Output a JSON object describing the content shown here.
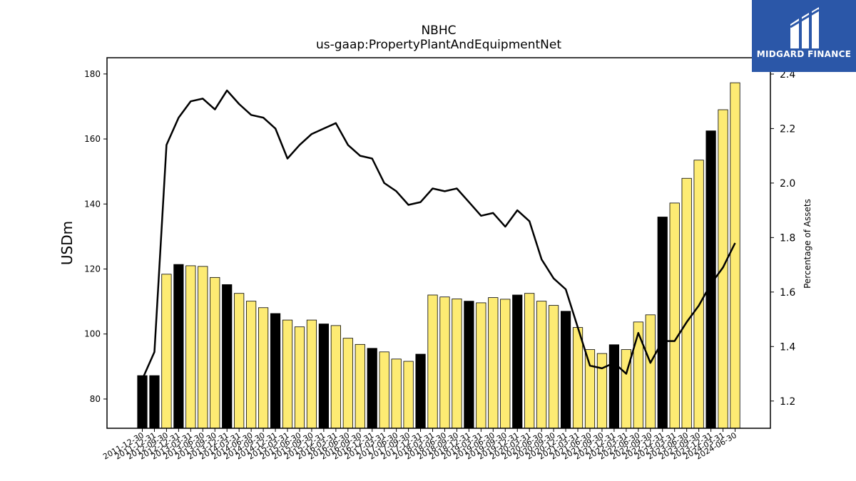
{
  "header": {
    "title": "NBHC",
    "subtitle": "us-gaap:PropertyPlantAndEquipmentNet"
  },
  "logo": {
    "text": "MIDGARD FINANCE",
    "bg_color": "#2b57a8"
  },
  "colors": {
    "bar_q4": "#000000",
    "bar_other": "#fdeb73",
    "line": "#000000"
  },
  "chart_data": {
    "type": "bar+line",
    "ylabel_left": "USDm",
    "ylabel_right": "Percentage of Assets",
    "ylim_left": [
      71,
      185
    ],
    "ylim_right": [
      1.1,
      2.46
    ],
    "yticks_left": [
      80,
      100,
      120,
      140,
      160,
      180
    ],
    "yticks_right": [
      1.2,
      1.4,
      1.6,
      1.8,
      2.0,
      2.2,
      2.4
    ],
    "grid": false,
    "categories": [
      "2011-12-30",
      "2011-12-31",
      "2012-09-30",
      "2012-12-31",
      "2013-03-31",
      "2013-06-30",
      "2013-09-30",
      "2013-12-31",
      "2014-03-31",
      "2014-06-30",
      "2014-09-30",
      "2014-12-31",
      "2015-03-31",
      "2015-06-30",
      "2015-09-30",
      "2015-12-31",
      "2016-03-31",
      "2016-06-30",
      "2016-09-30",
      "2016-12-31",
      "2017-03-31",
      "2017-06-30",
      "2017-09-30",
      "2017-12-31",
      "2018-03-31",
      "2018-06-30",
      "2018-09-30",
      "2018-12-31",
      "2019-03-31",
      "2019-06-30",
      "2019-09-30",
      "2019-12-31",
      "2020-03-31",
      "2020-06-30",
      "2020-09-30",
      "2020-12-31",
      "2021-03-31",
      "2021-06-30",
      "2021-09-30",
      "2021-12-31",
      "2022-03-31",
      "2022-06-30",
      "2022-09-30",
      "2022-12-31",
      "2023-03-31",
      "2023-06-30",
      "2023-09-30",
      "2023-12-31",
      "2024-03-31",
      "2024-06-30"
    ],
    "bar_values": [
      87.2,
      87.2,
      118.4,
      121.4,
      121.0,
      120.8,
      117.4,
      115.2,
      112.5,
      110.1,
      108.1,
      106.3,
      104.3,
      102.2,
      104.3,
      103.1,
      102.6,
      98.7,
      96.8,
      95.6,
      94.5,
      92.3,
      91.6,
      93.8,
      112.0,
      111.4,
      110.8,
      110.1,
      109.6,
      111.2,
      110.7,
      112.0,
      112.5,
      110.1,
      108.8,
      107.0,
      102.0,
      95.2,
      94.0,
      96.7,
      95.2,
      103.7,
      105.9,
      136.0,
      140.3,
      147.9,
      153.5,
      162.5,
      169.0,
      177.3
    ],
    "q4_flags": [
      1,
      1,
      0,
      1,
      0,
      0,
      0,
      1,
      0,
      0,
      0,
      1,
      0,
      0,
      0,
      1,
      0,
      0,
      0,
      1,
      0,
      0,
      0,
      1,
      0,
      0,
      0,
      1,
      0,
      0,
      0,
      1,
      0,
      0,
      0,
      1,
      0,
      0,
      0,
      1,
      0,
      0,
      0,
      1,
      0,
      0,
      0,
      1,
      0,
      0
    ],
    "line_values": [
      1.28,
      1.38,
      2.14,
      2.24,
      2.3,
      2.31,
      2.27,
      2.34,
      2.29,
      2.25,
      2.24,
      2.2,
      2.09,
      2.14,
      2.18,
      2.2,
      2.22,
      2.14,
      2.1,
      2.09,
      2.0,
      1.97,
      1.92,
      1.93,
      1.98,
      1.97,
      1.98,
      1.93,
      1.88,
      1.89,
      1.84,
      1.9,
      1.86,
      1.72,
      1.65,
      1.61,
      1.47,
      1.33,
      1.32,
      1.34,
      1.3,
      1.45,
      1.34,
      1.42,
      1.42,
      1.49,
      1.55,
      1.63,
      1.69,
      1.78
    ]
  }
}
